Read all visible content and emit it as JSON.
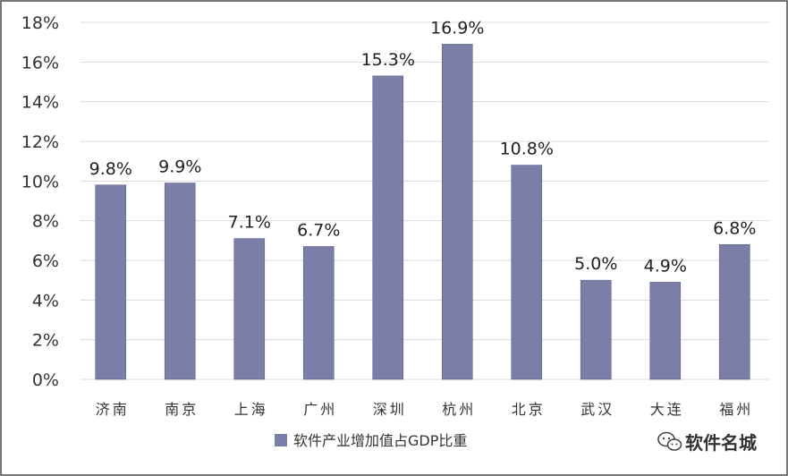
{
  "chart_data": {
    "type": "bar",
    "categories": [
      "济南",
      "南京",
      "上海",
      "广州",
      "深圳",
      "杭州",
      "北京",
      "武汉",
      "大连",
      "福州"
    ],
    "series": [
      {
        "name": "软件产业增加值占GDP比重",
        "values": [
          9.8,
          9.9,
          7.1,
          6.7,
          15.3,
          16.9,
          10.8,
          5.0,
          4.9,
          6.8
        ],
        "labels": [
          "9.8%",
          "9.9%",
          "7.1%",
          "6.7%",
          "15.3%",
          "16.9%",
          "10.8%",
          "5.0%",
          "4.9%",
          "6.8%"
        ],
        "color": "#7b7fa8"
      }
    ],
    "yticks": [
      "0%",
      "2%",
      "4%",
      "6%",
      "8%",
      "10%",
      "12%",
      "14%",
      "16%",
      "18%"
    ],
    "ylim": [
      0,
      18
    ],
    "grid": true,
    "legend": "bottom"
  },
  "watermark": {
    "text": "软件名城",
    "icon": "wechat-icon"
  },
  "colors": {
    "bar": "#7b7fa8",
    "grid": "#d9d9d9",
    "frame": "#4a4a4a"
  }
}
